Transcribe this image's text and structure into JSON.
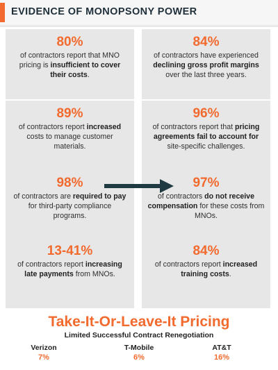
{
  "header": {
    "title": "EVIDENCE OF MONOPSONY POWER"
  },
  "colors": {
    "accent": "#f26a2e",
    "card_bg": "#e7e7e7",
    "arrow": "#1f3a40"
  },
  "cards": [
    {
      "pct": "80%",
      "parts": [
        {
          "t": "of contractors report that MNO pricing is ",
          "b": false
        },
        {
          "t": "insufficient to cover their costs",
          "b": true
        },
        {
          "t": ".",
          "b": false
        }
      ]
    },
    {
      "pct": "84%",
      "parts": [
        {
          "t": "of contractors have experienced ",
          "b": false
        },
        {
          "t": "declining gross profit margins",
          "b": true
        },
        {
          "t": " over the last three years.",
          "b": false
        }
      ]
    },
    {
      "pct": "89%",
      "parts": [
        {
          "t": "of contractors report ",
          "b": false
        },
        {
          "t": "increased",
          "b": true
        },
        {
          "t": " costs to manage customer materials.",
          "b": false
        }
      ]
    },
    {
      "pct": "96%",
      "parts": [
        {
          "t": "of contractors report that ",
          "b": false
        },
        {
          "t": "pricing agreements fail to account for",
          "b": true
        },
        {
          "t": " site-specific challenges.",
          "b": false
        }
      ]
    },
    {
      "pct": "98%",
      "parts": [
        {
          "t": "of contractors are ",
          "b": false
        },
        {
          "t": "required to pay",
          "b": true
        },
        {
          "t": " for third-party compliance programs.",
          "b": false
        }
      ]
    },
    {
      "pct": "97%",
      "parts": [
        {
          "t": "of contractors ",
          "b": false
        },
        {
          "t": "do not receive compensation",
          "b": true
        },
        {
          "t": " for these costs from MNOs.",
          "b": false
        }
      ]
    },
    {
      "pct": "13-41%",
      "parts": [
        {
          "t": "of contractors report ",
          "b": false
        },
        {
          "t": "increasing late payments",
          "b": true
        },
        {
          "t": " from MNOs.",
          "b": false
        }
      ]
    },
    {
      "pct": "84%",
      "parts": [
        {
          "t": "of contractors report ",
          "b": false
        },
        {
          "t": "increased training costs",
          "b": true
        },
        {
          "t": ".",
          "b": false
        }
      ]
    }
  ],
  "pricing": {
    "title": "Take-It-Or-Leave-It Pricing",
    "subtitle": "Limited Successful Contract Renegotiation",
    "carriers": [
      {
        "name": "Verizon",
        "value": "7%"
      },
      {
        "name": "T-Mobile",
        "value": "6%"
      },
      {
        "name": "AT&T",
        "value": "16%"
      }
    ]
  }
}
